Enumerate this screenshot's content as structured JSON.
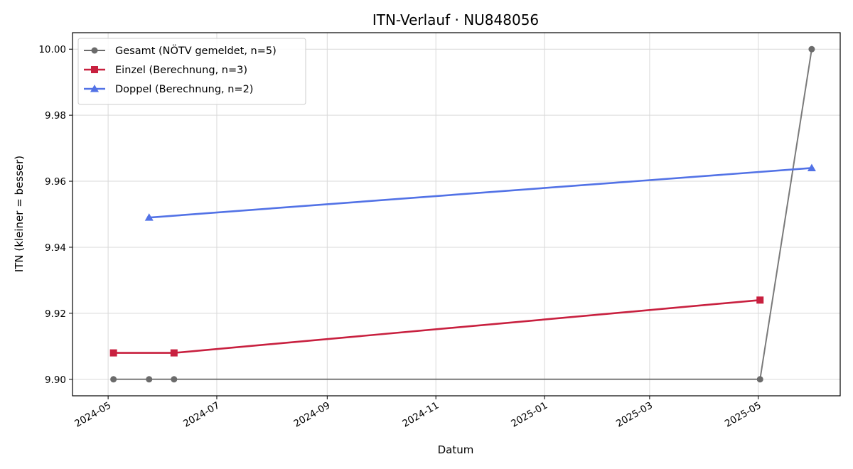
{
  "chart_data": {
    "type": "line",
    "title": "ITN-Verlauf · NU848056",
    "xlabel": "Datum",
    "ylabel": "ITN  (kleiner = besser)",
    "x_type": "date",
    "xlim": [
      "2024-04-11",
      "2025-06-16"
    ],
    "ylim": [
      9.895,
      10.005
    ],
    "x_ticks": [
      "2024-05-01",
      "2024-07-01",
      "2024-09-01",
      "2024-11-01",
      "2025-01-01",
      "2025-03-01",
      "2025-05-01"
    ],
    "x_tick_labels": [
      "2024-05",
      "2024-07",
      "2024-09",
      "2024-11",
      "2025-01",
      "2025-03",
      "2025-05"
    ],
    "y_ticks": [
      9.9,
      9.92,
      9.94,
      9.96,
      9.98,
      10.0
    ],
    "y_tick_labels": [
      "9.90",
      "9.92",
      "9.94",
      "9.96",
      "9.98",
      "10.00"
    ],
    "grid": true,
    "legend_position": "top-left",
    "series": [
      {
        "name": "Gesamt (NÖTV gemeldet, n=5)",
        "color": "#6b6b6b",
        "marker": "circle",
        "points": [
          {
            "x": "2024-05-04",
            "y": 9.9
          },
          {
            "x": "2024-05-24",
            "y": 9.9
          },
          {
            "x": "2024-06-07",
            "y": 9.9
          },
          {
            "x": "2025-05-02",
            "y": 9.9
          },
          {
            "x": "2025-05-31",
            "y": 10.0
          }
        ]
      },
      {
        "name": "Einzel (Berechnung, n=3)",
        "color": "#c8203f",
        "marker": "square",
        "points": [
          {
            "x": "2024-05-04",
            "y": 9.908
          },
          {
            "x": "2024-06-07",
            "y": 9.908
          },
          {
            "x": "2025-05-02",
            "y": 9.924
          }
        ]
      },
      {
        "name": "Doppel (Berechnung, n=2)",
        "color": "#5272e6",
        "marker": "triangle",
        "points": [
          {
            "x": "2024-05-24",
            "y": 9.949
          },
          {
            "x": "2025-05-31",
            "y": 9.964
          }
        ]
      }
    ]
  }
}
